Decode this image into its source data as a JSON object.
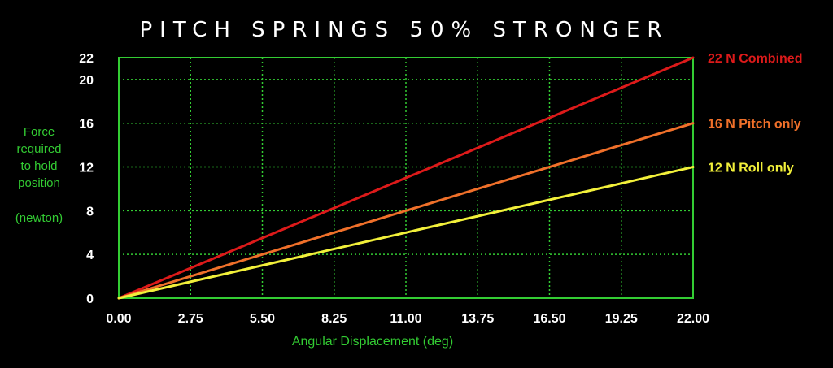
{
  "chart_data": {
    "type": "line",
    "title": "PITCH SPRINGS 50% STRONGER",
    "xlabel": "Angular Displacement (deg)",
    "ylabel_lines": [
      "Force",
      "required",
      "to hold",
      "position"
    ],
    "ylabel_unit": "(newton)",
    "xlim": [
      0,
      22
    ],
    "ylim": [
      0,
      22
    ],
    "x_ticks": [
      0,
      2.75,
      5.5,
      8.25,
      11,
      13.75,
      16.5,
      19.25,
      22
    ],
    "x_tick_labels": [
      "0.00",
      "2.75",
      "5.50",
      "8.25",
      "11.00",
      "13.75",
      "16.50",
      "19.25",
      "22.00"
    ],
    "y_ticks": [
      0,
      4,
      8,
      12,
      16,
      20,
      22
    ],
    "y_tick_labels": [
      "0",
      "4",
      "8",
      "12",
      "16",
      "20",
      "22"
    ],
    "grid": true,
    "series": [
      {
        "name": "Combined",
        "end_label": "22 N",
        "color": "#dd1a1a",
        "x": [
          0,
          22
        ],
        "y": [
          0,
          22
        ]
      },
      {
        "name": "Pitch only",
        "end_label": "16 N",
        "color": "#f0702a",
        "x": [
          0,
          22
        ],
        "y": [
          0,
          16
        ]
      },
      {
        "name": "Roll only",
        "end_label": "12 N",
        "color": "#f2f03a",
        "x": [
          0,
          22
        ],
        "y": [
          0,
          12
        ]
      }
    ],
    "colors": {
      "background": "#000000",
      "frame": "#33cc33",
      "grid": "#33cc33",
      "text": "#ffffff",
      "axis_label": "#33cc33"
    }
  }
}
